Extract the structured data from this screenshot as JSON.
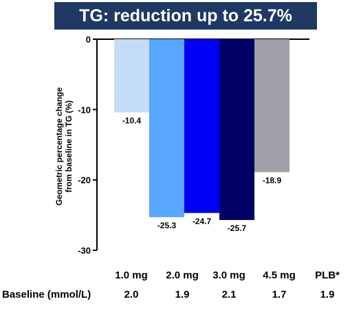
{
  "chart_data": {
    "type": "bar",
    "title": "TG: reduction up to 25.7%",
    "ylabel_lines": [
      "Geometric percentage change",
      "from baseline in TG (%)"
    ],
    "categories": [
      "1.0 mg",
      "2.0 mg",
      "3.0 mg",
      "4.5 mg",
      "PLB*"
    ],
    "values": [
      -10.4,
      -25.3,
      -24.7,
      -25.7,
      -18.9
    ],
    "value_labels": [
      "-10.4",
      "-25.3",
      "-24.7",
      "-25.7",
      "-18.9"
    ],
    "colors": [
      "#c5dcf7",
      "#58a6ff",
      "#0000f5",
      "#000066",
      "#a0a0a8"
    ],
    "ylim": [
      -30,
      0
    ],
    "yticks": [
      0,
      -10,
      -20,
      -30
    ],
    "ytick_labels": [
      "0",
      "-10",
      "-20",
      "-30"
    ],
    "grid": false,
    "legend": "none"
  },
  "baseline": {
    "label": "Baseline (mmol/L)",
    "values": [
      "2.0",
      "1.9",
      "2.1",
      "1.7",
      "1.9"
    ]
  }
}
